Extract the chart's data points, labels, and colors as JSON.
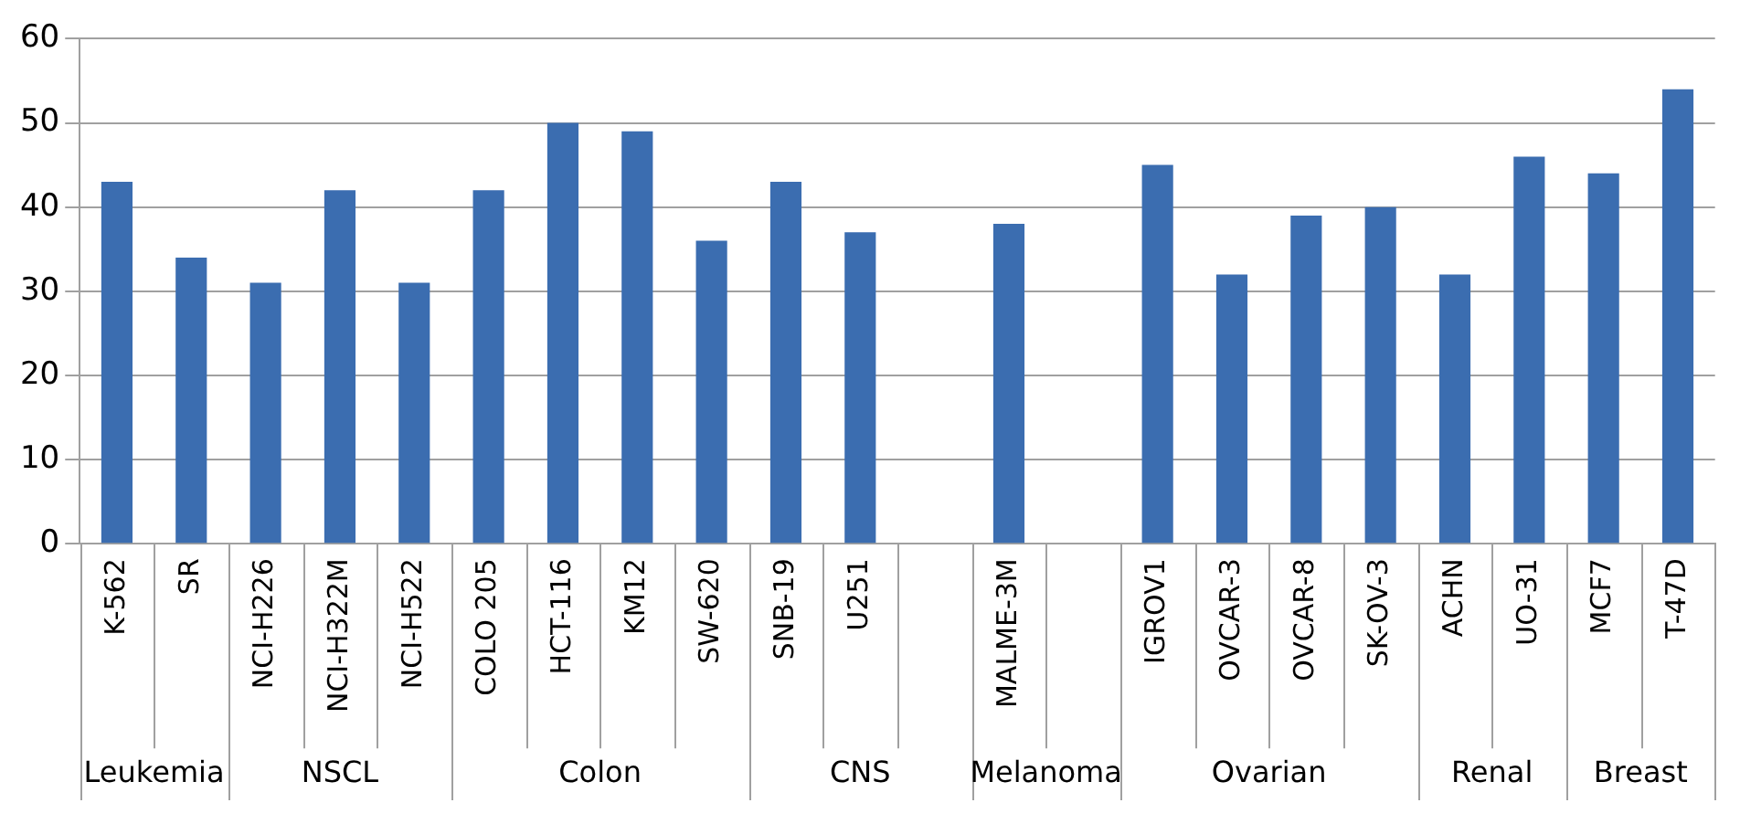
{
  "chart_data": {
    "type": "bar",
    "categories": [
      "K-562",
      "SR",
      "NCI-H226",
      "NCI-H322M",
      "NCI-H522",
      "COLO 205",
      "HCT-116",
      "KM12",
      "SW-620",
      "SNB-19",
      "U251",
      null,
      "MALME-3M",
      null,
      "IGROV1",
      "OVCAR-3",
      "OVCAR-8",
      "SK-OV-3",
      "ACHN",
      "UO-31",
      "MCF7",
      "T-47D"
    ],
    "values": [
      43,
      34,
      31,
      42,
      31,
      42,
      50,
      49,
      36,
      43,
      37,
      null,
      38,
      null,
      45,
      32,
      39,
      40,
      32,
      46,
      44,
      54
    ],
    "color": "#3b6db0",
    "ylim": [
      0,
      60
    ],
    "yticks": [
      0,
      10,
      20,
      30,
      40,
      50,
      60
    ],
    "grid": "y",
    "annotations": [
      "Leukemia",
      "NSCL",
      "Colon",
      "CNS",
      "Melanoma",
      "Ovarian",
      "Renal",
      "Breast"
    ]
  }
}
